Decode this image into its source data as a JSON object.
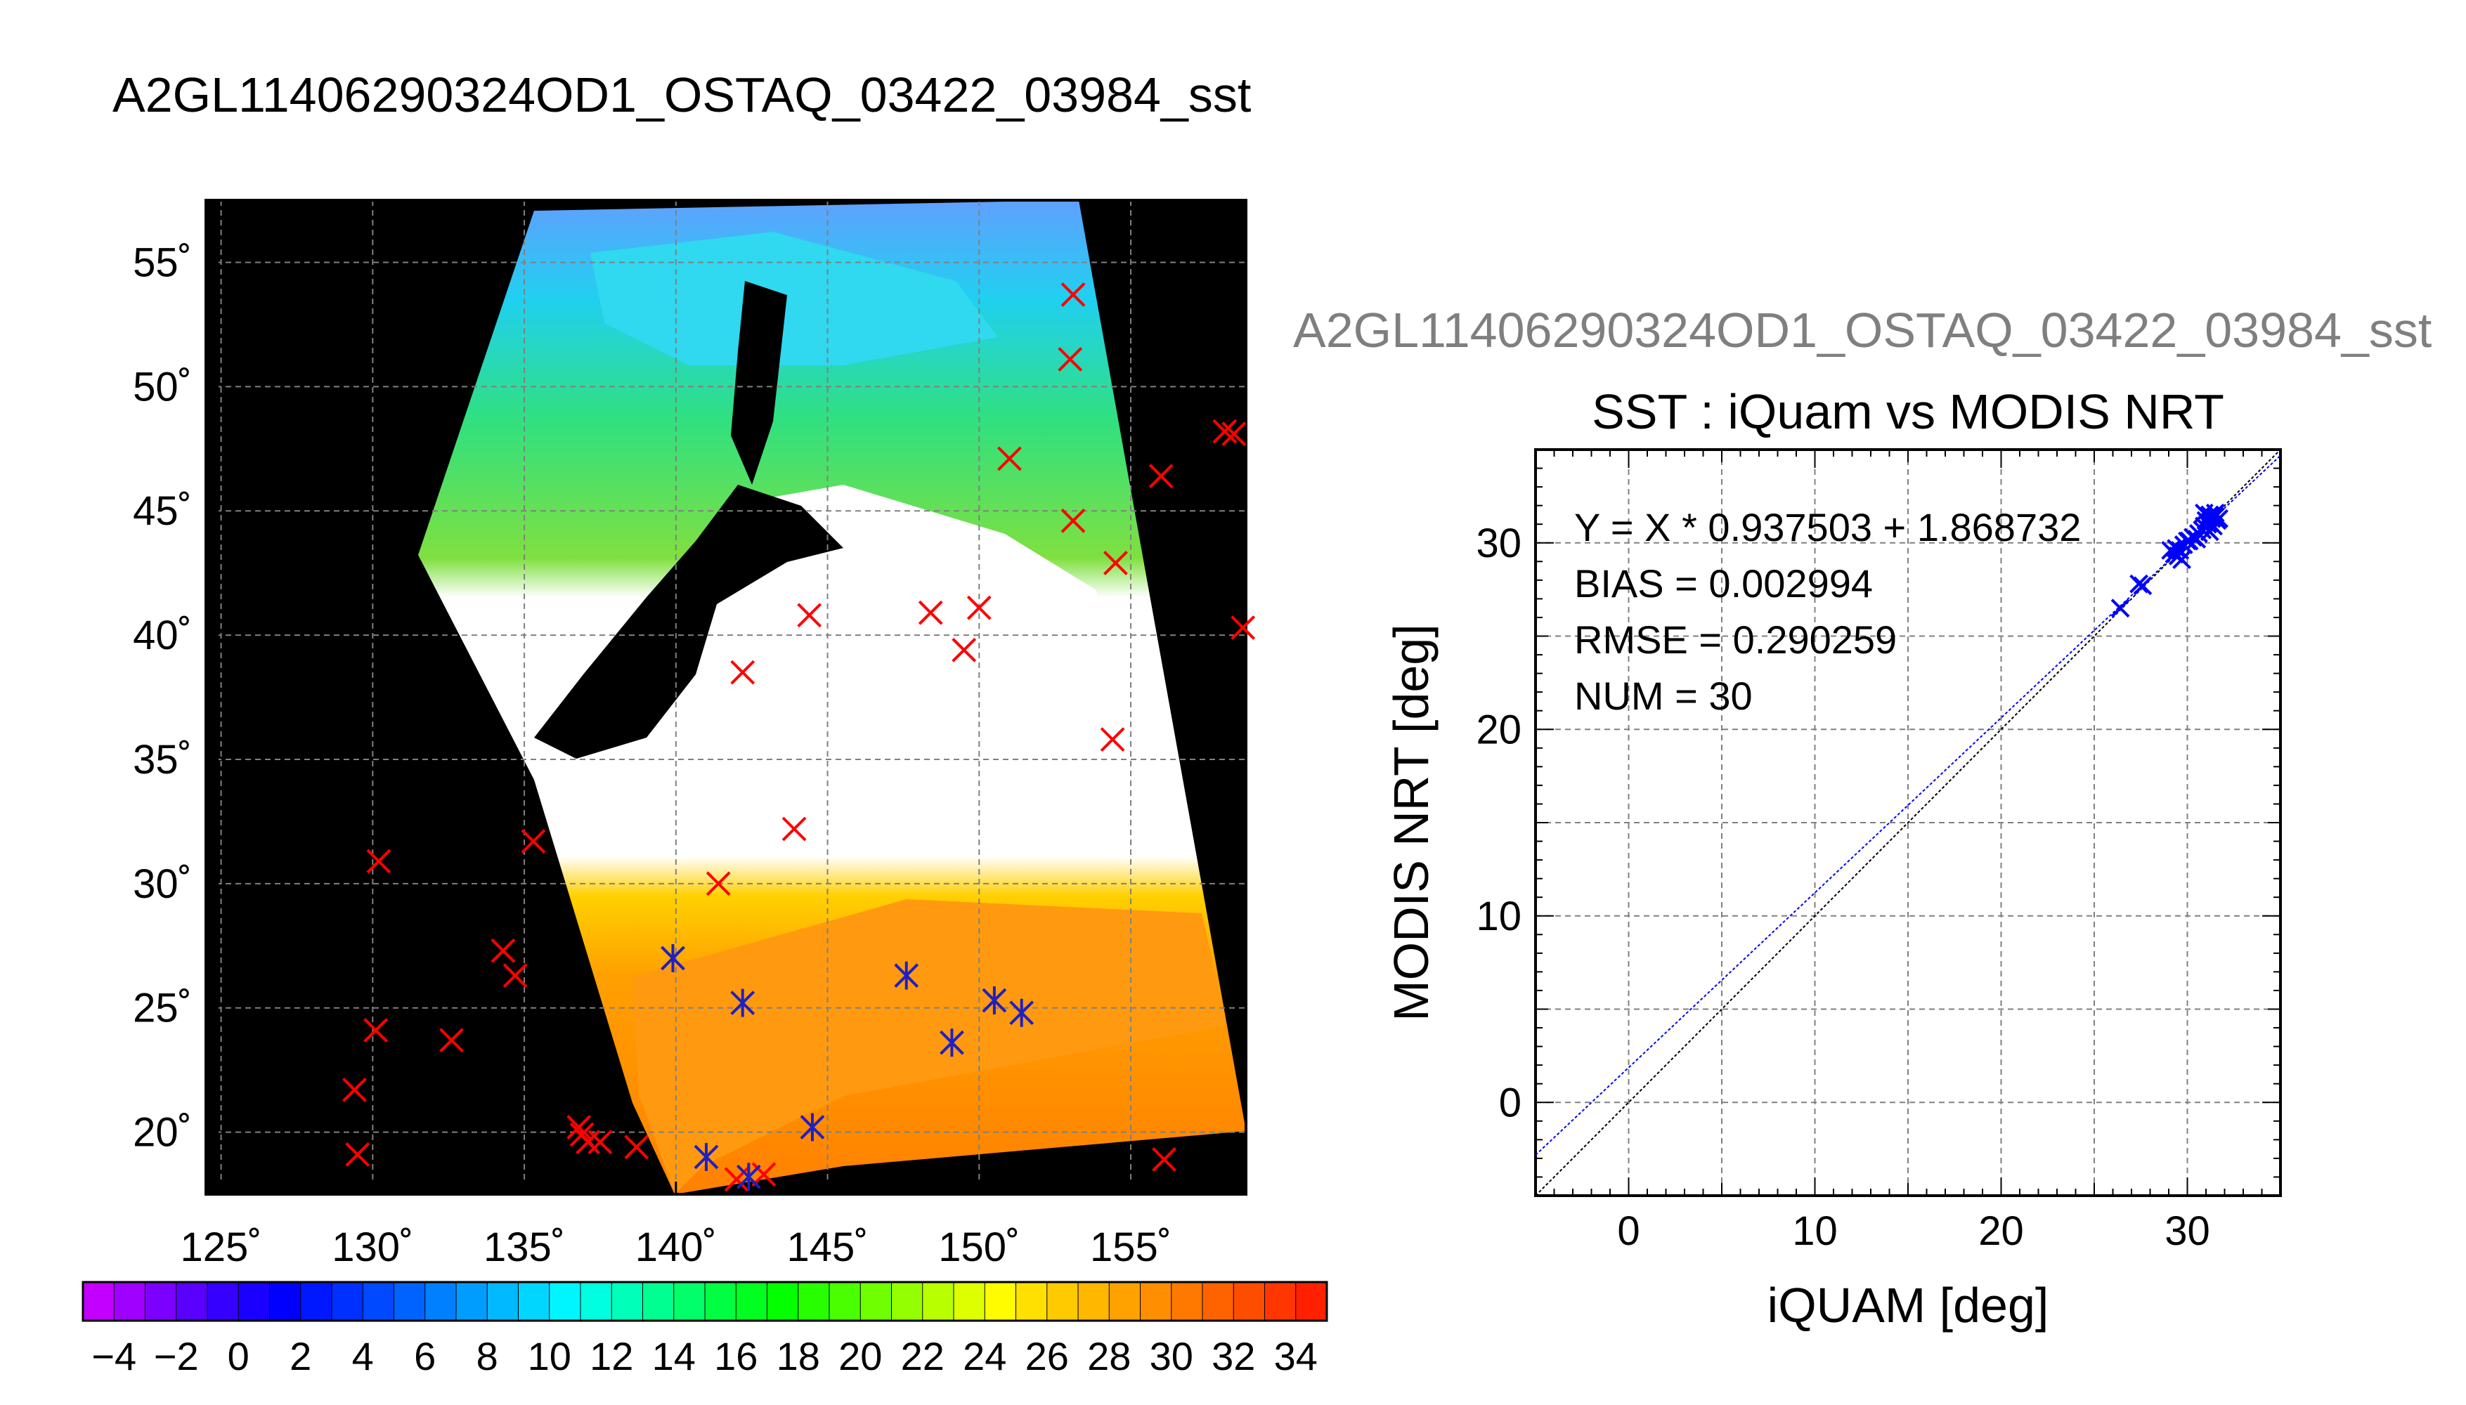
{
  "title": "A2GL11406290324OD1_OSTAQ_03422_03984_sst",
  "scatter_file_title": "A2GL11406290324OD1_OSTAQ_03422_03984_sst",
  "colors": {
    "land": "#000000",
    "grid": "#808080",
    "marker_red": "#ff0000",
    "marker_blue": "#2020c0",
    "fit_line": "#0000ff",
    "one_to_one": "#000000"
  },
  "chart_data": [
    {
      "type": "map",
      "x_ticks": [
        "125˚",
        "130˚",
        "135˚",
        "140˚",
        "145˚",
        "150˚",
        "155˚"
      ],
      "y_ticks": [
        "20˚",
        "25˚",
        "30˚",
        "35˚",
        "40˚",
        "45˚",
        "50˚",
        "55˚"
      ],
      "xlim": [
        124.5,
        158.8
      ],
      "ylim": [
        17.5,
        57.5
      ],
      "grid": true,
      "red_markers": [
        [
          153.1,
          53.7
        ],
        [
          153.0,
          51.1
        ],
        [
          151.0,
          47.1
        ],
        [
          156.0,
          46.4
        ],
        [
          158.1,
          48.2
        ],
        [
          158.4,
          48.1
        ],
        [
          153.1,
          44.6
        ],
        [
          154.5,
          42.9
        ],
        [
          144.4,
          40.8
        ],
        [
          148.4,
          40.9
        ],
        [
          150.0,
          41.1
        ],
        [
          149.5,
          39.4
        ],
        [
          158.7,
          40.3
        ],
        [
          142.2,
          38.5
        ],
        [
          154.4,
          35.8
        ],
        [
          143.9,
          32.2
        ],
        [
          135.3,
          31.7
        ],
        [
          130.2,
          30.9
        ],
        [
          141.4,
          30.0
        ],
        [
          134.3,
          27.3
        ],
        [
          134.7,
          26.3
        ],
        [
          130.1,
          24.1
        ],
        [
          132.6,
          23.7
        ],
        [
          129.4,
          21.7
        ],
        [
          136.8,
          20.2
        ],
        [
          136.9,
          19.9
        ],
        [
          137.1,
          19.6
        ],
        [
          137.5,
          19.6
        ],
        [
          138.7,
          19.4
        ],
        [
          129.5,
          19.1
        ],
        [
          156.1,
          18.9
        ],
        [
          142.9,
          18.3
        ],
        [
          142.0,
          18.1
        ]
      ],
      "blue_markers": [
        [
          139.9,
          27.0
        ],
        [
          142.2,
          25.2
        ],
        [
          147.6,
          26.3
        ],
        [
          150.5,
          25.3
        ],
        [
          151.4,
          24.8
        ],
        [
          149.1,
          23.6
        ],
        [
          144.5,
          20.2
        ],
        [
          141.0,
          19.0
        ],
        [
          142.4,
          18.2
        ]
      ]
    },
    {
      "type": "scatter",
      "title": "SST : iQuam vs MODIS NRT",
      "xlabel": "iQUAM [deg]",
      "ylabel": "MODIS NRT [deg]",
      "xlim": [
        -5,
        35
      ],
      "ylim": [
        -5,
        35
      ],
      "x_ticks": [
        0,
        10,
        20,
        30
      ],
      "y_ticks": [
        0,
        10,
        20,
        30
      ],
      "grid": true,
      "stats": [
        "Y = X * 0.937503 + 1.868732",
        "BIAS = 0.002994",
        "RMSE = 0.290259",
        "NUM = 30"
      ],
      "fit": {
        "slope": 0.937503,
        "intercept": 1.868732
      },
      "points": [
        [
          26.4,
          26.5
        ],
        [
          27.4,
          27.8
        ],
        [
          27.6,
          27.7
        ],
        [
          29.1,
          29.6
        ],
        [
          29.3,
          29.4
        ],
        [
          29.4,
          29.7
        ],
        [
          29.5,
          29.3
        ],
        [
          29.6,
          29.6
        ],
        [
          29.7,
          29.1
        ],
        [
          29.8,
          29.9
        ],
        [
          30.0,
          30.1
        ],
        [
          30.1,
          30.1
        ],
        [
          30.3,
          30.3
        ],
        [
          30.5,
          30.2
        ],
        [
          30.6,
          30.5
        ],
        [
          30.8,
          30.7
        ],
        [
          30.9,
          30.9
        ],
        [
          31.0,
          31.2
        ],
        [
          31.0,
          30.8
        ],
        [
          31.1,
          31.0
        ],
        [
          31.2,
          31.5
        ],
        [
          31.2,
          31.1
        ],
        [
          31.3,
          31.3
        ],
        [
          31.4,
          30.9
        ],
        [
          31.5,
          31.4
        ],
        [
          31.5,
          31.6
        ],
        [
          31.6,
          31.2
        ],
        [
          31.7,
          31.3
        ],
        [
          31.2,
          30.6
        ],
        [
          30.9,
          31.6
        ]
      ]
    },
    {
      "type": "colorbar",
      "min": -5,
      "max": 35,
      "step": 2,
      "tick_labels": [
        "−4",
        "−2",
        "0",
        "2",
        "4",
        "6",
        "8",
        "10",
        "12",
        "14",
        "16",
        "18",
        "20",
        "22",
        "24",
        "26",
        "28",
        "30",
        "32",
        "34"
      ]
    }
  ]
}
